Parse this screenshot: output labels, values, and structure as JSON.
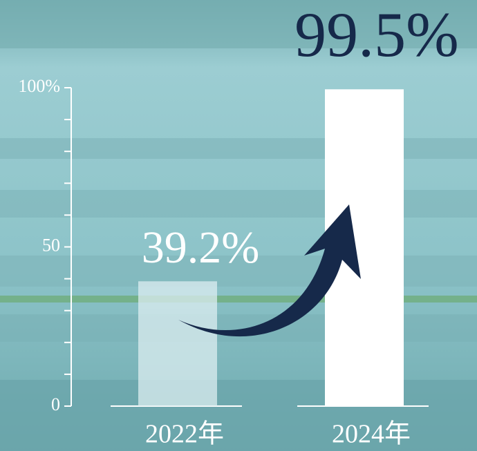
{
  "chart_data": {
    "type": "bar",
    "categories": [
      "2022年",
      "2024年"
    ],
    "values": [
      39.2,
      99.5
    ],
    "value_labels": [
      "39.2%",
      "99.5%"
    ],
    "colors": [
      "#dcedf0",
      "#ffffff"
    ],
    "label_colors": [
      "#ffffff",
      "#16294a"
    ],
    "ylim": [
      0,
      100
    ],
    "yticks": [
      0,
      50,
      {
        "value": 100,
        "label": "100%"
      }
    ],
    "yticks_minor": [
      10,
      20,
      30,
      40,
      60,
      70,
      80,
      90
    ]
  }
}
